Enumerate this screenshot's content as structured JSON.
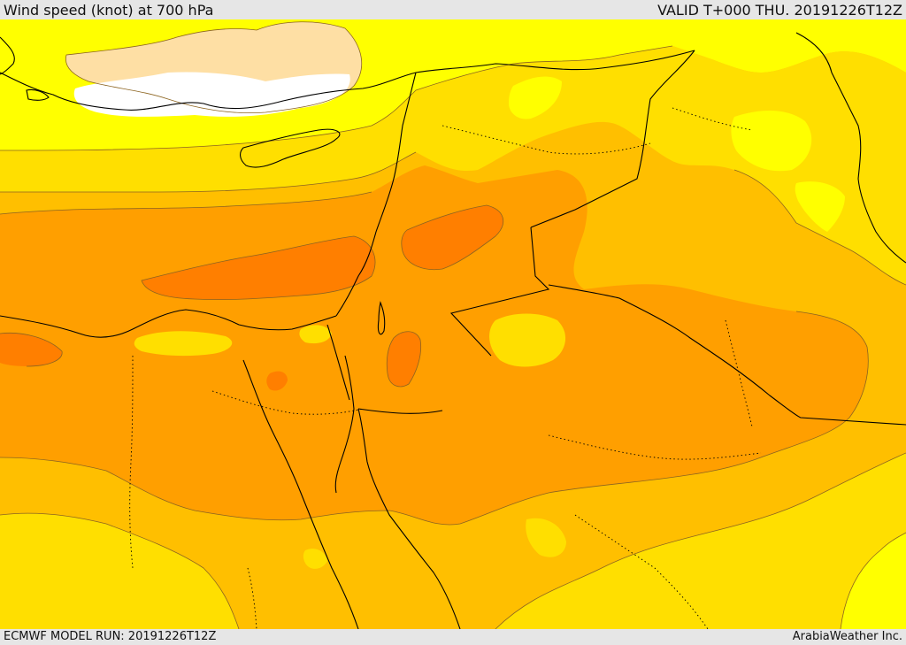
{
  "header": {
    "title": "Wind speed (knot) at 700 hPa",
    "valid": "VALID T+000 THU. 20191226T12Z"
  },
  "footer": {
    "model_run": "ECMWF MODEL RUN: 20191226T12Z",
    "credit": "ArabiaWeather Inc."
  },
  "map": {
    "colors": {
      "white": "#ffffff",
      "peach": "#fedfa4",
      "yellow": "#ffff00",
      "gold": "#ffdf00",
      "amber": "#ffbf00",
      "orange": "#ff9f00",
      "dark_orange": "#ff7f00",
      "coastline": "#000000",
      "contour": "#8c6420"
    }
  }
}
